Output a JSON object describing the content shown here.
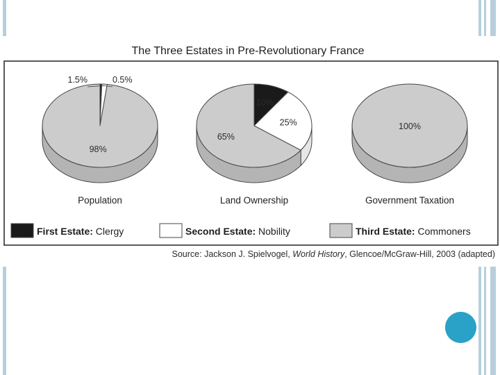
{
  "chart_data": {
    "type": "pie",
    "title": "The Three Estates in Pre-Revolutionary France",
    "legend": [
      {
        "key": "first",
        "bold": "First Estate:",
        "text": "Clergy",
        "color": "#1a1a1a"
      },
      {
        "key": "second",
        "bold": "Second Estate:",
        "text": "Nobility",
        "color": "#ffffff"
      },
      {
        "key": "third",
        "bold": "Third Estate:",
        "text": "Commoners",
        "color": "#cccccc"
      }
    ],
    "legend_placement": "bottom",
    "pies": [
      {
        "name": "Population",
        "slices": [
          {
            "estate": "first",
            "value": 0.5,
            "label": "0.5%"
          },
          {
            "estate": "second",
            "value": 1.5,
            "label": "1.5%"
          },
          {
            "estate": "third",
            "value": 98,
            "label": "98%"
          }
        ]
      },
      {
        "name": "Land Ownership",
        "slices": [
          {
            "estate": "first",
            "value": 10,
            "label": "10%"
          },
          {
            "estate": "second",
            "value": 25,
            "label": "25%"
          },
          {
            "estate": "third",
            "value": 65,
            "label": "65%"
          }
        ]
      },
      {
        "name": "Government Taxation",
        "slices": [
          {
            "estate": "third",
            "value": 100,
            "label": "100%"
          }
        ]
      }
    ],
    "source": {
      "prefix": "Source: Jackson J. Spielvogel, ",
      "italic": "World History",
      "suffix": ", Glencoe/McGraw-Hill, 2003 (adapted)"
    }
  }
}
